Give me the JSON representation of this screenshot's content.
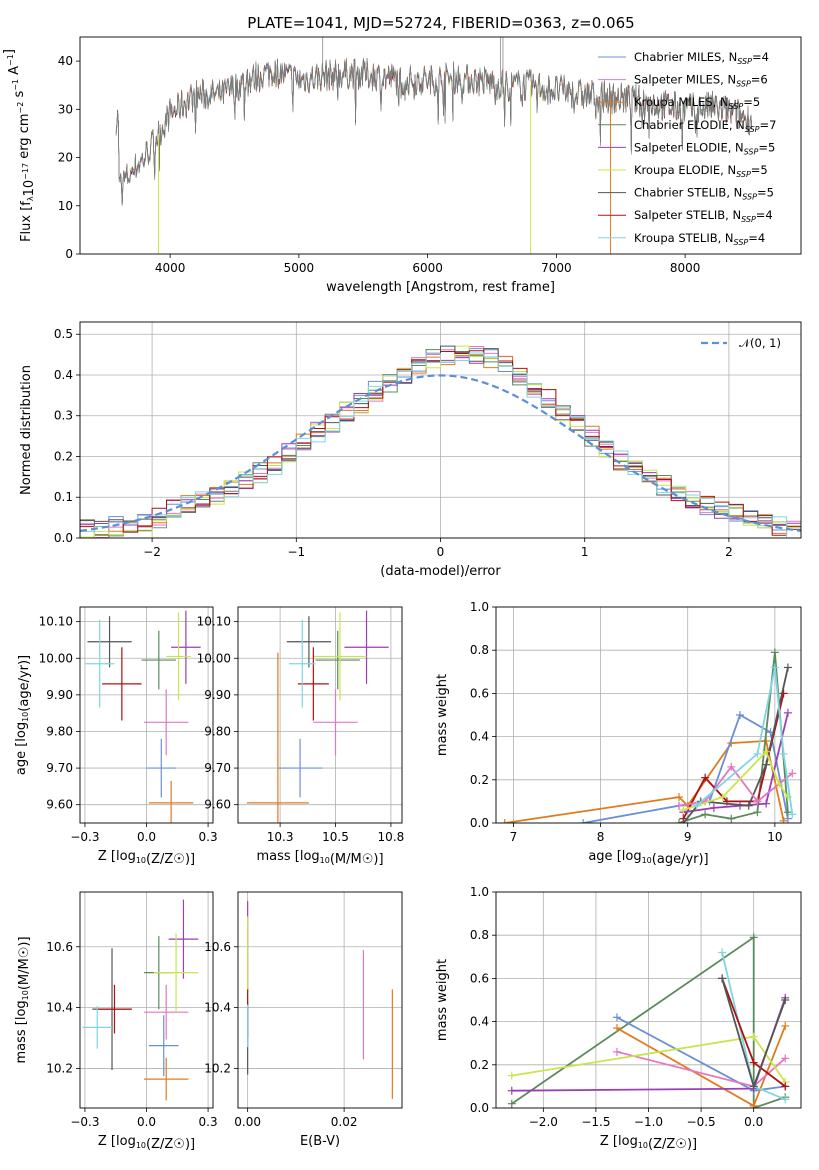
{
  "figure": {
    "title": "PLATE=1041, MJD=52724, FIBERID=0363, z=0.065"
  },
  "colors": {
    "chabrier_miles": "#6a8fd8",
    "salpeter_miles": "#e377c2",
    "kroupa_miles": "#e07b1f",
    "chabrier_elodie": "#5b8a5b",
    "salpeter_elodie": "#9b3fb5",
    "kroupa_elodie": "#c8e64c",
    "chabrier_stelib": "#555555",
    "salpeter_stelib": "#b01010",
    "kroupa_stelib": "#7fd6e0",
    "gaussian": "#5b8fd6"
  },
  "chart_data": [
    {
      "id": "spectrum",
      "type": "line",
      "xlabel": "wavelength [Angstrom, rest frame]",
      "ylabel": "Flux [f_λ10^-17 erg cm^-2 s^-1 A^-1]",
      "xlim": [
        3300,
        8900
      ],
      "ylim": [
        0,
        45
      ],
      "xticks": [
        4000,
        5000,
        6000,
        7000,
        8000
      ],
      "yticks": [
        0,
        10,
        20,
        30,
        40
      ],
      "grid": false,
      "legend_position": "top-right",
      "data": {
        "x": [
          3600,
          3800,
          4000,
          4200,
          4400,
          4600,
          4800,
          5000,
          5200,
          5400,
          5600,
          5800,
          6000,
          6200,
          6400,
          6600,
          6800,
          7000,
          7200,
          7400,
          7600,
          7800,
          8000,
          8200,
          8400,
          8500
        ],
        "y": [
          14,
          20,
          29,
          33,
          33,
          36,
          38,
          36,
          37,
          37.5,
          37,
          36,
          36,
          36.5,
          36,
          35,
          35,
          34,
          33,
          32.5,
          32,
          31,
          30,
          30.5,
          29,
          28
        ]
      },
      "series": [
        {
          "name": "Chabrier MILES",
          "nssp": "4"
        },
        {
          "name": "Salpeter MILES",
          "nssp": "6"
        },
        {
          "name": "Kroupa MILES",
          "nssp": "5"
        },
        {
          "name": "Chabrier ELODIE",
          "nssp": "7"
        },
        {
          "name": "Salpeter ELODIE",
          "nssp": "5"
        },
        {
          "name": "Kroupa ELODIE",
          "nssp": "5"
        },
        {
          "name": "Chabrier STELIB",
          "nssp": "5"
        },
        {
          "name": "Salpeter STELIB",
          "nssp": "4"
        },
        {
          "name": "Kroupa STELIB",
          "nssp": "4"
        }
      ],
      "legend_subscript": "SSP"
    },
    {
      "id": "residuals",
      "type": "line",
      "xlabel": "(data-model)/error",
      "ylabel": "Normed distribution",
      "xlim": [
        -2.5,
        2.5
      ],
      "ylim": [
        0,
        0.53
      ],
      "xticks": [
        -2,
        -1,
        0,
        1,
        2
      ],
      "yticks": [
        0.0,
        0.1,
        0.2,
        0.3,
        0.4,
        0.5
      ],
      "grid": true,
      "legend_position": "top-right",
      "reference_curve": {
        "name": "N(0,1)",
        "style": "dashed"
      },
      "bins": [
        -2.5,
        -2.4,
        -2.3,
        -2.2,
        -2.1,
        -2.0,
        -1.9,
        -1.8,
        -1.7,
        -1.6,
        -1.5,
        -1.4,
        -1.3,
        -1.2,
        -1.1,
        -1.0,
        -0.9,
        -0.8,
        -0.7,
        -0.6,
        -0.5,
        -0.4,
        -0.3,
        -0.2,
        -0.1,
        0.0,
        0.1,
        0.2,
        0.3,
        0.4,
        0.5,
        0.6,
        0.7,
        0.8,
        0.9,
        1.0,
        1.1,
        1.2,
        1.3,
        1.4,
        1.5,
        1.6,
        1.7,
        1.8,
        1.9,
        2.0,
        2.1,
        2.2,
        2.3,
        2.4,
        2.5
      ],
      "hist_values": [
        0.02,
        0.02,
        0.03,
        0.03,
        0.04,
        0.05,
        0.07,
        0.08,
        0.09,
        0.1,
        0.12,
        0.14,
        0.16,
        0.18,
        0.21,
        0.23,
        0.26,
        0.28,
        0.31,
        0.33,
        0.36,
        0.38,
        0.4,
        0.42,
        0.44,
        0.45,
        0.45,
        0.45,
        0.44,
        0.43,
        0.4,
        0.37,
        0.34,
        0.31,
        0.28,
        0.25,
        0.22,
        0.19,
        0.17,
        0.15,
        0.13,
        0.11,
        0.09,
        0.08,
        0.07,
        0.06,
        0.05,
        0.04,
        0.03,
        0.02
      ]
    },
    {
      "id": "age_vs_Z",
      "type": "scatter",
      "xlabel": "Z [log10(Z/Z☉)]",
      "ylabel": "age  [log10(age/yr)]",
      "xlim": [
        -0.27,
        0.27
      ],
      "ylim": [
        9.55,
        10.14
      ],
      "xticks": [
        -0.25,
        0.0,
        0.25
      ],
      "yticks": [
        9.6,
        9.7,
        9.8,
        9.9,
        10.0,
        10.1
      ],
      "grid": true,
      "points": [
        {
          "color": "chabrier_miles",
          "x": 0.06,
          "y": 9.7,
          "xerr": 0.06,
          "yerr": 0.08
        },
        {
          "color": "salpeter_miles",
          "x": 0.08,
          "y": 9.825,
          "xerr": 0.09,
          "yerr": 0.09
        },
        {
          "color": "kroupa_miles",
          "x": 0.1,
          "y": 9.605,
          "xerr": 0.09,
          "yerr": 0.06
        },
        {
          "color": "chabrier_elodie",
          "x": 0.05,
          "y": 9.995,
          "xerr": 0.07,
          "yerr": 0.08
        },
        {
          "color": "salpeter_elodie",
          "x": 0.16,
          "y": 10.03,
          "xerr": 0.06,
          "yerr": 0.1
        },
        {
          "color": "kroupa_elodie",
          "x": 0.13,
          "y": 10.005,
          "xerr": 0.05,
          "yerr": 0.12
        },
        {
          "color": "chabrier_stelib",
          "x": -0.15,
          "y": 10.045,
          "xerr": 0.09,
          "yerr": 0.07
        },
        {
          "color": "salpeter_stelib",
          "x": -0.1,
          "y": 9.93,
          "xerr": 0.08,
          "yerr": 0.1
        },
        {
          "color": "kroupa_stelib",
          "x": -0.19,
          "y": 9.985,
          "xerr": 0.06,
          "yerr": 0.12
        }
      ]
    },
    {
      "id": "age_vs_mass",
      "type": "scatter",
      "xlabel": "mass [log10(M/M☉)]",
      "ylabel": "",
      "xlim": [
        10.06,
        10.8
      ],
      "ylim": [
        9.55,
        10.14
      ],
      "xticks": [
        10.25,
        10.5,
        10.75
      ],
      "yticks": [
        9.6,
        9.7,
        9.8,
        9.9,
        10.0,
        10.1
      ],
      "grid": true,
      "points": [
        {
          "color": "chabrier_miles",
          "x": 10.34,
          "y": 9.7,
          "xerr": 0.1,
          "yerr": 0.08
        },
        {
          "color": "salpeter_miles",
          "x": 10.5,
          "y": 9.825,
          "xerr": 0.1,
          "yerr": 0.09
        },
        {
          "color": "kroupa_miles",
          "x": 10.24,
          "y": 9.605,
          "xerr": 0.14,
          "yerr": 0.41
        },
        {
          "color": "chabrier_elodie",
          "x": 10.51,
          "y": 9.995,
          "xerr": 0.1,
          "yerr": 0.08
        },
        {
          "color": "salpeter_elodie",
          "x": 10.64,
          "y": 10.03,
          "xerr": 0.1,
          "yerr": 0.1
        },
        {
          "color": "kroupa_elodie",
          "x": 10.52,
          "y": 10.005,
          "xerr": 0.12,
          "yerr": 0.12
        },
        {
          "color": "chabrier_stelib",
          "x": 10.38,
          "y": 10.045,
          "xerr": 0.1,
          "yerr": 0.07
        },
        {
          "color": "salpeter_stelib",
          "x": 10.4,
          "y": 9.93,
          "xerr": 0.07,
          "yerr": 0.1
        },
        {
          "color": "kroupa_stelib",
          "x": 10.35,
          "y": 9.985,
          "xerr": 0.06,
          "yerr": 0.12
        }
      ]
    },
    {
      "id": "weight_vs_age",
      "type": "line",
      "xlabel": "age  [log10(age/yr)]",
      "ylabel": "mass weight",
      "xlim": [
        6.8,
        10.3
      ],
      "ylim": [
        0,
        1.0
      ],
      "xticks": [
        7,
        8,
        9,
        10
      ],
      "yticks": [
        0.0,
        0.2,
        0.4,
        0.6,
        0.8,
        1.0
      ],
      "grid": true,
      "series": [
        {
          "color": "kroupa_miles",
          "x": [
            6.9,
            8.9,
            9.0,
            9.5,
            9.9,
            10.1
          ],
          "y": [
            0.0,
            0.12,
            0.08,
            0.37,
            0.38,
            0.01
          ]
        },
        {
          "color": "chabrier_miles",
          "x": [
            7.8,
            8.9,
            9.25,
            9.6,
            9.95,
            10.15
          ],
          "y": [
            0.0,
            0.08,
            0.1,
            0.5,
            0.42,
            0.02
          ]
        },
        {
          "color": "chabrier_elodie",
          "x": [
            8.9,
            9.2,
            9.5,
            9.8,
            10.0,
            10.15
          ],
          "y": [
            0.0,
            0.04,
            0.02,
            0.05,
            0.79,
            0.05
          ]
        },
        {
          "color": "salpeter_stelib",
          "x": [
            8.95,
            9.2,
            9.45,
            9.8,
            10.1
          ],
          "y": [
            0.02,
            0.21,
            0.1,
            0.1,
            0.6
          ]
        },
        {
          "color": "salpeter_elodie",
          "x": [
            8.95,
            9.3,
            9.6,
            9.9,
            10.15
          ],
          "y": [
            0.05,
            0.07,
            0.08,
            0.09,
            0.51
          ]
        },
        {
          "color": "chabrier_stelib",
          "x": [
            8.95,
            9.15,
            9.7,
            9.9,
            10.15
          ],
          "y": [
            0.0,
            0.1,
            0.08,
            0.27,
            0.72
          ]
        },
        {
          "color": "salpeter_miles",
          "x": [
            8.9,
            9.2,
            9.5,
            9.8,
            10.2
          ],
          "y": [
            0.08,
            0.1,
            0.26,
            0.1,
            0.23
          ]
        },
        {
          "color": "kroupa_elodie",
          "x": [
            8.95,
            9.4,
            9.9,
            10.05,
            10.15
          ],
          "y": [
            0.06,
            0.12,
            0.33,
            0.18,
            0.12
          ]
        },
        {
          "color": "kroupa_stelib",
          "x": [
            9.1,
            9.8,
            10.0,
            10.1,
            10.2
          ],
          "y": [
            0.08,
            0.32,
            0.72,
            0.32,
            0.04
          ]
        }
      ]
    },
    {
      "id": "mass_vs_Z",
      "type": "scatter",
      "xlabel": "Z [log10(Z/Z☉)]",
      "ylabel": "mass [log10(M/M☉)]",
      "xlim": [
        -0.27,
        0.27
      ],
      "ylim": [
        10.07,
        10.78
      ],
      "xticks": [
        -0.25,
        0.0,
        0.25
      ],
      "yticks": [
        10.2,
        10.4,
        10.6
      ],
      "grid": true,
      "points": [
        {
          "color": "chabrier_miles",
          "x": 0.07,
          "y": 10.275,
          "xerr": 0.06,
          "yerr": 0.1
        },
        {
          "color": "salpeter_miles",
          "x": 0.08,
          "y": 10.385,
          "xerr": 0.09,
          "yerr": 0.09
        },
        {
          "color": "kroupa_miles",
          "x": 0.08,
          "y": 10.165,
          "xerr": 0.09,
          "yerr": 0.07
        },
        {
          "color": "chabrier_elodie",
          "x": 0.05,
          "y": 10.515,
          "xerr": 0.06,
          "yerr": 0.12
        },
        {
          "color": "salpeter_elodie",
          "x": 0.15,
          "y": 10.625,
          "xerr": 0.06,
          "yerr": 0.13
        },
        {
          "color": "kroupa_elodie",
          "x": 0.12,
          "y": 10.515,
          "xerr": 0.09,
          "yerr": 0.13
        },
        {
          "color": "chabrier_stelib",
          "x": -0.14,
          "y": 10.395,
          "xerr": 0.08,
          "yerr": 0.2
        },
        {
          "color": "salpeter_stelib",
          "x": -0.13,
          "y": 10.395,
          "xerr": 0.07,
          "yerr": 0.08
        },
        {
          "color": "kroupa_stelib",
          "x": -0.2,
          "y": 10.335,
          "xerr": 0.06,
          "yerr": 0.07
        }
      ]
    },
    {
      "id": "mass_vs_ebv",
      "type": "scatter",
      "xlabel": "E(B-V)",
      "ylabel": "",
      "xlim": [
        -0.002,
        0.032
      ],
      "ylim": [
        10.07,
        10.78
      ],
      "xticks": [
        0.0,
        0.02
      ],
      "yticks": [
        10.2,
        10.4,
        10.6
      ],
      "grid": true,
      "points": [
        {
          "color": "kroupa_miles",
          "x": 0.03,
          "y": 10.28,
          "xerr": 0,
          "yerr": 0.18
        },
        {
          "color": "salpeter_miles",
          "x": 0.024,
          "y": 10.41,
          "xerr": 0,
          "yerr": 0.18
        },
        {
          "color": "salpeter_elodie",
          "x": 0.0,
          "y": 10.6,
          "xerr": 0,
          "yerr": 0.15
        },
        {
          "color": "kroupa_elodie",
          "x": 0.0,
          "y": 10.55,
          "xerr": 0,
          "yerr": 0.15
        },
        {
          "color": "chabrier_stelib",
          "x": 0.0,
          "y": 10.3,
          "xerr": 0,
          "yerr": 0.12
        },
        {
          "color": "salpeter_stelib",
          "x": 0.0,
          "y": 10.38,
          "xerr": 0,
          "yerr": 0.08
        },
        {
          "color": "kroupa_stelib",
          "x": 0.0,
          "y": 10.34,
          "xerr": 0,
          "yerr": 0.07
        }
      ]
    },
    {
      "id": "weight_vs_Z",
      "type": "line",
      "xlabel": "Z [log10(Z/Z☉)]",
      "ylabel": "mass weight",
      "xlim": [
        -2.45,
        0.45
      ],
      "ylim": [
        0,
        1.0
      ],
      "xticks": [
        -2.0,
        -1.5,
        -1.0,
        -0.5,
        0.0
      ],
      "yticks": [
        0.0,
        0.2,
        0.4,
        0.6,
        0.8,
        1.0
      ],
      "grid": true,
      "series": [
        {
          "color": "chabrier_elodie",
          "x": [
            -2.3,
            0.0,
            0.0,
            0.3
          ],
          "y": [
            0.02,
            0.79,
            0.0,
            0.05
          ]
        },
        {
          "color": "chabrier_miles",
          "x": [
            -1.3,
            0.0,
            0.3
          ],
          "y": [
            0.42,
            0.08,
            0.1
          ]
        },
        {
          "color": "kroupa_miles",
          "x": [
            -1.3,
            0.0,
            0.3
          ],
          "y": [
            0.37,
            0.01,
            0.38
          ]
        },
        {
          "color": "salpeter_miles",
          "x": [
            -1.3,
            0.0,
            0.3
          ],
          "y": [
            0.26,
            0.1,
            0.23
          ]
        },
        {
          "color": "kroupa_elodie",
          "x": [
            -2.3,
            0.0,
            0.3
          ],
          "y": [
            0.15,
            0.33,
            0.12
          ]
        },
        {
          "color": "salpeter_elodie",
          "x": [
            -2.3,
            0.0,
            0.3
          ],
          "y": [
            0.08,
            0.09,
            0.51
          ]
        },
        {
          "color": "kroupa_stelib",
          "x": [
            -0.3,
            0.0,
            0.3
          ],
          "y": [
            0.72,
            0.1,
            0.04
          ]
        },
        {
          "color": "salpeter_stelib",
          "x": [
            -0.3,
            0.0,
            0.3
          ],
          "y": [
            0.6,
            0.21,
            0.1
          ]
        },
        {
          "color": "chabrier_stelib",
          "x": [
            -0.3,
            0.0,
            0.3
          ],
          "y": [
            0.6,
            0.1,
            0.5
          ]
        }
      ]
    }
  ]
}
